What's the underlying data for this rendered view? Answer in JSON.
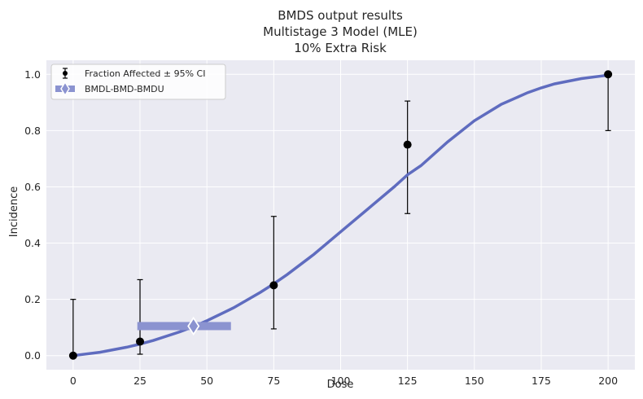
{
  "chart_data": {
    "type": "scatter",
    "title": [
      "BMDS output results",
      "Multistage 3 Model (MLE)",
      "10% Extra Risk"
    ],
    "xlabel": "Dose",
    "ylabel": "Incidence",
    "xlim": [
      -10,
      210
    ],
    "ylim": [
      -0.05,
      1.05
    ],
    "xticks": [
      0,
      25,
      50,
      75,
      100,
      125,
      150,
      175,
      200
    ],
    "yticks": [
      0.0,
      0.2,
      0.4,
      0.6,
      0.8,
      1.0
    ],
    "xtick_labels": [
      "0",
      "25",
      "50",
      "75",
      "100",
      "125",
      "150",
      "175",
      "200"
    ],
    "ytick_labels": [
      "0.0",
      "0.2",
      "0.4",
      "0.6",
      "0.8",
      "1.0"
    ],
    "grid": true,
    "legend_position": "top-left",
    "legend": [
      "Fraction Affected ± 95% CI",
      "BMDL-BMD-BMDU"
    ],
    "observed": {
      "name": "Fraction Affected ± 95% CI",
      "dose": [
        0,
        25,
        75,
        125,
        200
      ],
      "incidence": [
        0.0,
        0.05,
        0.25,
        0.75,
        1.0
      ],
      "ci_lower": [
        0.0,
        0.005,
        0.095,
        0.505,
        0.8
      ],
      "ci_upper": [
        0.2,
        0.27,
        0.495,
        0.905,
        1.0
      ]
    },
    "model_curve": {
      "name": "Multistage 3 Model (MLE)",
      "x": [
        0,
        10,
        20,
        25,
        30,
        40,
        45,
        50,
        60,
        70,
        75,
        80,
        90,
        100,
        110,
        120,
        125,
        130,
        140,
        150,
        160,
        170,
        175,
        180,
        190,
        200
      ],
      "y": [
        0.0,
        0.012,
        0.03,
        0.041,
        0.054,
        0.085,
        0.103,
        0.124,
        0.17,
        0.225,
        0.255,
        0.288,
        0.36,
        0.44,
        0.52,
        0.6,
        0.643,
        0.675,
        0.76,
        0.835,
        0.893,
        0.935,
        0.952,
        0.966,
        0.985,
        0.997
      ]
    },
    "bmd_interval": {
      "name": "BMDL-BMD-BMDU",
      "bmdl": 24,
      "bmd": 45,
      "bmdu": 59,
      "response": 0.105
    },
    "colors": {
      "background": "#eaeaf2",
      "grid": "#ffffff",
      "curve": "#5f6cbf",
      "bmd_bar": "#8b93d0",
      "points": "#000000"
    }
  }
}
